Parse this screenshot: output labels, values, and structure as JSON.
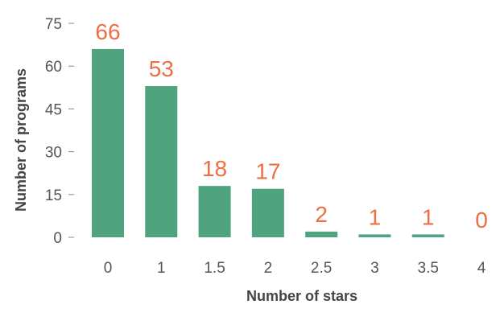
{
  "chart_data": {
    "type": "bar",
    "categories": [
      "0",
      "1",
      "1.5",
      "2",
      "2.5",
      "3",
      "3.5",
      "4"
    ],
    "values": [
      66,
      53,
      18,
      17,
      2,
      1,
      1,
      0
    ],
    "data_labels": [
      "66",
      "53",
      "18",
      "17",
      "2",
      "1",
      "1",
      "0"
    ],
    "xlabel": "Number of stars",
    "ylabel": "Number of programs",
    "ylim": [
      0,
      75
    ],
    "yticks": [
      "0",
      "15",
      "30",
      "45",
      "60",
      "75"
    ],
    "grid": false,
    "colors": {
      "bar": "#4fa37e",
      "label": "#ee6e42",
      "tick_mark": "#888888"
    }
  }
}
